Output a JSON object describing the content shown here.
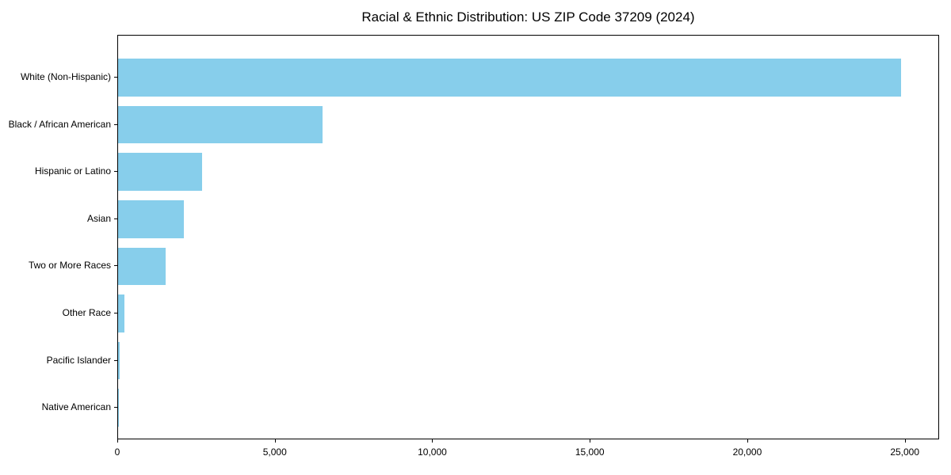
{
  "figure": {
    "title": "Racial & Ethnic Distribution: US ZIP Code 37209 (2024)"
  },
  "chart_data": {
    "type": "bar",
    "orientation": "horizontal",
    "title": "Racial & Ethnic Distribution: US ZIP Code 37209 (2024)",
    "categories": [
      "White (Non-Hispanic)",
      "Black / African American",
      "Hispanic or Latino",
      "Asian",
      "Two or More Races",
      "Other Race",
      "Pacific Islander",
      "Native American"
    ],
    "values": [
      24850,
      6490,
      2660,
      2090,
      1510,
      195,
      40,
      10
    ],
    "bar_color": "#87CEEB",
    "xlabel": "",
    "ylabel": "",
    "xlim": [
      0,
      26090
    ],
    "xticks": [
      0,
      5000,
      10000,
      15000,
      20000,
      25000
    ],
    "xtick_labels": [
      "0",
      "5,000",
      "10,000",
      "15,000",
      "20,000",
      "25,000"
    ],
    "grid": false,
    "legend_position": "none",
    "axis_color": "#000000",
    "text_color": "#000000",
    "background_color": "#ffffff"
  }
}
